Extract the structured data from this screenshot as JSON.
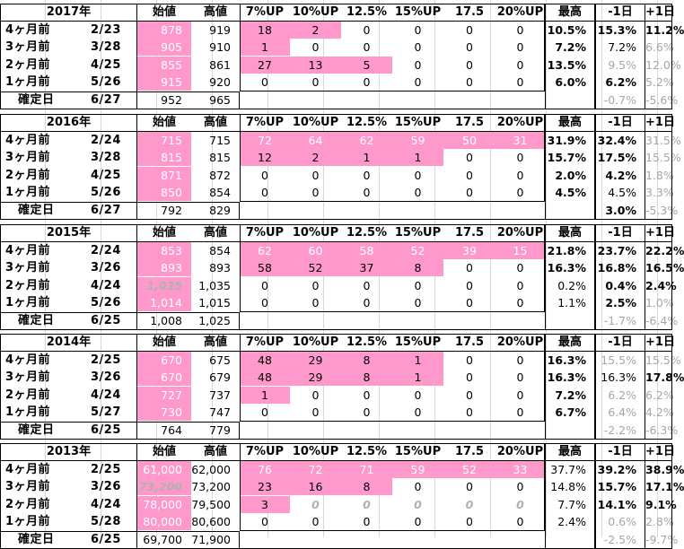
{
  "headers": [
    "始値",
    "高値",
    "7%UP",
    "10%UP",
    "12.5%",
    "15%UP",
    "17.5",
    "20%UP",
    "最高",
    "-1日",
    "+1日"
  ],
  "blocks": [
    {
      "year": "2017年",
      "rows": [
        {
          "label": "4ヶ月前",
          "date": "2/23",
          "open": "878",
          "high": "919",
          "p7": "18",
          "p10": "2",
          "p125": "0",
          "p15": "0",
          "p175": "0",
          "p20": "0",
          "max": "10.5%",
          "m1": "15.3%",
          "p1": "11.2%"
        },
        {
          "label": "3ヶ月前",
          "date": "3/28",
          "open": "905",
          "high": "910",
          "p7": "1",
          "p10": "0",
          "p125": "0",
          "p15": "0",
          "p175": "0",
          "p20": "0",
          "max": "7.2%",
          "m1": "7.2%",
          "p1": "6.6%"
        },
        {
          "label": "2ヶ月前",
          "date": "4/25",
          "open": "855",
          "high": "861",
          "p7": "27",
          "p10": "13",
          "p125": "5",
          "p15": "0",
          "p175": "0",
          "p20": "0",
          "max": "13.5%",
          "m1": "9.5%",
          "p1": "12.0%"
        },
        {
          "label": "1ヶ月前",
          "date": "5/26",
          "open": "915",
          "high": "920",
          "p7": "0",
          "p10": "0",
          "p125": "0",
          "p15": "0",
          "p175": "0",
          "p20": "0",
          "max": "6.0%",
          "m1": "6.2%",
          "p1": "5.2%"
        }
      ],
      "confirm": {
        "label": "確定日",
        "date": "6/27",
        "open": "952",
        "high": "965",
        "m1": "-0.7%",
        "p1": "-5.6%"
      }
    },
    {
      "year": "2016年",
      "rows": [
        {
          "label": "4ヶ月前",
          "date": "2/24",
          "open": "715",
          "high": "715",
          "p7": "72",
          "p10": "64",
          "p125": "62",
          "p15": "59",
          "p175": "50",
          "p20": "31",
          "max": "31.9%",
          "m1": "32.4%",
          "p1": "31.5%"
        },
        {
          "label": "3ヶ月前",
          "date": "3/28",
          "open": "815",
          "high": "815",
          "p7": "12",
          "p10": "2",
          "p125": "1",
          "p15": "1",
          "p175": "0",
          "p20": "0",
          "max": "15.7%",
          "m1": "17.5%",
          "p1": "15.5%"
        },
        {
          "label": "2ヶ月前",
          "date": "4/25",
          "open": "871",
          "high": "872",
          "p7": "0",
          "p10": "0",
          "p125": "0",
          "p15": "0",
          "p175": "0",
          "p20": "0",
          "max": "2.0%",
          "m1": "4.2%",
          "p1": "1.8%"
        },
        {
          "label": "1ヶ月前",
          "date": "5/26",
          "open": "850",
          "high": "854",
          "p7": "0",
          "p10": "0",
          "p125": "0",
          "p15": "0",
          "p175": "0",
          "p20": "0",
          "max": "4.5%",
          "m1": "4.5%",
          "p1": "3.3%"
        }
      ],
      "confirm": {
        "label": "確定日",
        "date": "6/27",
        "open": "792",
        "high": "829",
        "m1": "3.0%",
        "p1": "-5.3%"
      }
    },
    {
      "year": "2015年",
      "rows": [
        {
          "label": "4ヶ月前",
          "date": "2/24",
          "open": "853",
          "high": "854",
          "p7": "62",
          "p10": "60",
          "p125": "58",
          "p15": "52",
          "p175": "39",
          "p20": "15",
          "max": "21.8%",
          "m1": "23.7%",
          "p1": "22.2%"
        },
        {
          "label": "3ヶ月前",
          "date": "3/26",
          "open": "893",
          "high": "893",
          "p7": "58",
          "p10": "52",
          "p125": "37",
          "p15": "8",
          "p175": "0",
          "p20": "0",
          "max": "16.3%",
          "m1": "16.8%",
          "p1": "16.5%"
        },
        {
          "label": "2ヶ月前",
          "date": "4/24",
          "open": "1,035",
          "high": "1,035",
          "p7": "0",
          "p10": "0",
          "p125": "0",
          "p15": "0",
          "p175": "0",
          "p20": "0",
          "max": "0.2%",
          "m1": "0.4%",
          "p1": "2.4%"
        },
        {
          "label": "1ヶ月前",
          "date": "5/26",
          "open": "1,014",
          "high": "1,015",
          "p7": "0",
          "p10": "0",
          "p125": "0",
          "p15": "0",
          "p175": "0",
          "p20": "0",
          "max": "1.1%",
          "m1": "2.5%",
          "p1": "1.0%"
        }
      ],
      "confirm": {
        "label": "確定日",
        "date": "6/25",
        "open": "1,008",
        "high": "1,025",
        "m1": "-1.7%",
        "p1": "-6.4%"
      }
    },
    {
      "year": "2014年",
      "rows": [
        {
          "label": "4ヶ月前",
          "date": "2/25",
          "open": "670",
          "high": "675",
          "p7": "48",
          "p10": "29",
          "p125": "8",
          "p15": "1",
          "p175": "0",
          "p20": "0",
          "max": "16.3%",
          "m1": "15.5%",
          "p1": "15.5%"
        },
        {
          "label": "3ヶ月前",
          "date": "3/26",
          "open": "670",
          "high": "679",
          "p7": "48",
          "p10": "29",
          "p125": "8",
          "p15": "1",
          "p175": "0",
          "p20": "0",
          "max": "16.3%",
          "m1": "16.3%",
          "p1": "17.8%"
        },
        {
          "label": "2ヶ月前",
          "date": "4/24",
          "open": "727",
          "high": "737",
          "p7": "1",
          "p10": "0",
          "p125": "0",
          "p15": "0",
          "p175": "0",
          "p20": "0",
          "max": "7.2%",
          "m1": "6.2%",
          "p1": "6.2%"
        },
        {
          "label": "1ヶ月前",
          "date": "5/27",
          "open": "730",
          "high": "747",
          "p7": "0",
          "p10": "0",
          "p125": "0",
          "p15": "0",
          "p175": "0",
          "p20": "0",
          "max": "6.7%",
          "m1": "6.4%",
          "p1": "4.2%"
        }
      ],
      "confirm": {
        "label": "確定日",
        "date": "6/25",
        "open": "764",
        "high": "779",
        "m1": "-2.2%",
        "p1": "-6.3%"
      }
    },
    {
      "year": "2013年",
      "rows": [
        {
          "label": "4ヶ月前",
          "date": "2/25",
          "open": "61,000",
          "high": "62,000",
          "p7": "76",
          "p10": "72",
          "p125": "71",
          "p15": "59",
          "p175": "52",
          "p20": "33",
          "max": "37.7%",
          "m1": "39.2%",
          "p1": "38.9%"
        },
        {
          "label": "3ヶ月前",
          "date": "3/26",
          "open": "73,200",
          "high": "73,200",
          "p7": "23",
          "p10": "16",
          "p125": "8",
          "p15": "0",
          "p175": "0",
          "p20": "0",
          "max": "14.8%",
          "m1": "15.7%",
          "p1": "17.1%"
        },
        {
          "label": "2ヶ月前",
          "date": "4/24",
          "open": "78,000",
          "high": "79,500",
          "p7": "3",
          "p10": "0",
          "p125": "0",
          "p15": "0",
          "p175": "0",
          "p20": "0",
          "max": "7.7%",
          "m1": "14.1%",
          "p1": "9.1%"
        },
        {
          "label": "1ヶ月前",
          "date": "5/28",
          "open": "80,000",
          "high": "80,600",
          "p7": "0",
          "p10": "0",
          "p125": "0",
          "p15": "0",
          "p175": "0",
          "p20": "0",
          "max": "2.4%",
          "m1": "0.6%",
          "p1": "2.8%"
        }
      ],
      "confirm": {
        "label": "確定日",
        "date": "6/25",
        "open": "69,700",
        "high": "71,900",
        "m1": "-2.5%",
        "p1": "-9.7%"
      }
    }
  ]
}
